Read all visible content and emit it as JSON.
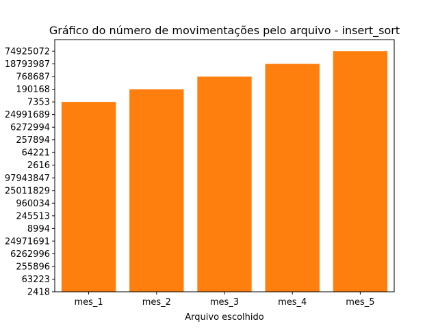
{
  "chart_data": {
    "type": "bar",
    "title": "Gráfico do número de movimentações pelo arquivo - insert_sort",
    "xlabel": "Arquivo escolhido",
    "ylabel": "",
    "categories": [
      "mes_1",
      "mes_2",
      "mes_3",
      "mes_4",
      "mes_5"
    ],
    "y_categories": [
      "2418",
      "63223",
      "255896",
      "6262996",
      "24971691",
      "8994",
      "245513",
      "960034",
      "25011829",
      "97943847",
      "2616",
      "64221",
      "257894",
      "6272994",
      "24991689",
      "7353",
      "190168",
      "768687",
      "18793987",
      "74925072"
    ],
    "values": [
      "7353",
      "190168",
      "768687",
      "18793987",
      "74925072"
    ],
    "bar_color": "#ff7f0e",
    "grid": false,
    "legend": "none"
  }
}
